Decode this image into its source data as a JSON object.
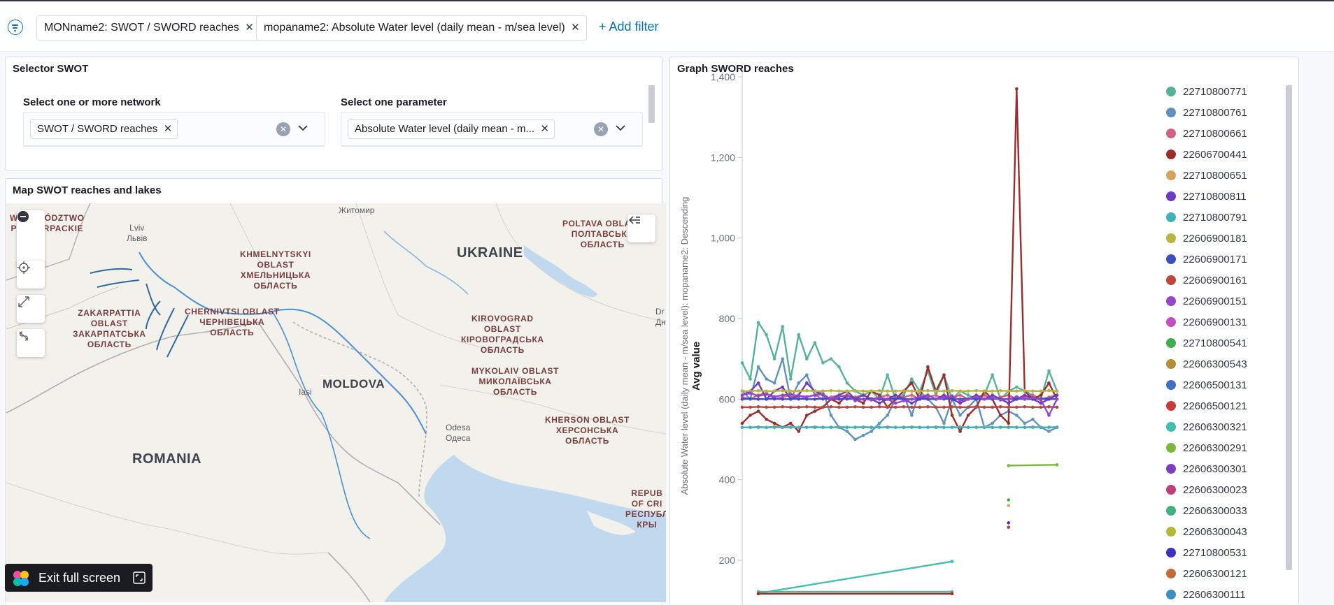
{
  "filters": [
    {
      "label": "MONname2: SWOT / SWORD reaches"
    },
    {
      "label": "mopaname2: Absolute Water level (daily mean - m/sea level)"
    }
  ],
  "add_filter_label": "+ Add filter",
  "selector": {
    "title": "Selector SWOT",
    "network_label": "Select one or more network",
    "network_value": "SWOT / SWORD reaches",
    "parameter_label": "Select one parameter",
    "parameter_value": "Absolute Water level (daily mean - m..."
  },
  "map_panel": {
    "title": "Map SWOT reaches and lakes",
    "countries": [
      "UKRAINE",
      "MOLDOVA",
      "ROMANIA"
    ],
    "regions": [
      {
        "text": "WOJEWÓDZTWO\nPODKARPACKIE"
      },
      {
        "text": "KHMELNYTSKYI\nOBLAST\nХМЕЛЬНИЦЬКА\nОБЛАСТЬ"
      },
      {
        "text": "POLTAVA OBLAST\nПОЛТАВСЬКА\nОБЛАСТЬ"
      },
      {
        "text": "ZAKARPATTIA\nOBLAST\nЗАКАРПАТСЬКА\nОБЛАСТЬ"
      },
      {
        "text": "CHERNIVTSI OBLAST\nЧЕРНІВЕЦЬКА\nОБЛАСТЬ"
      },
      {
        "text": "KIROVOGRAD\nOBLAST\nКІРОВОГРАДСЬКА\nОБЛАСТЬ"
      },
      {
        "text": "MYKOLAIV OBLAST\nМИКОЛАЇВСЬКА\nОБЛАСТЬ"
      },
      {
        "text": "KHERSON OBLAST\nХЕРСОНСЬКА\nОБЛАСТЬ"
      },
      {
        "text": "REPUB\nOF CRI\nРЕСПУБЛ\nКРЫ"
      }
    ],
    "cities": [
      {
        "text": "Lviv\nЛьвів"
      },
      {
        "text": "Житомир"
      },
      {
        "text": "Iași"
      },
      {
        "text": "Odesa\nОдеса"
      },
      {
        "text": "Dr\nДн"
      }
    ]
  },
  "exit_fullscreen_label": "Exit full screen",
  "graph_panel": {
    "title": "Graph SWORD reaches"
  },
  "chart_data": {
    "type": "line",
    "ylabel": "Absolute Water level (daily mean - m/sea level): mopaname2: Descending",
    "ylabel2": "Avg value",
    "ylim": [
      100,
      1420
    ],
    "yticks": [
      200,
      400,
      600,
      800,
      1000,
      1200,
      1400
    ],
    "ytick_labels": [
      "200",
      "400",
      "600",
      "800",
      "1,000",
      "1,200",
      "1,400"
    ],
    "legend_position": "right",
    "series": [
      {
        "name": "22710800771",
        "color": "#54b399",
        "values": [
          690,
          650,
          790,
          760,
          700,
          780,
          650,
          760,
          700,
          740,
          690,
          700,
          680,
          640,
          620,
          610,
          620,
          600,
          660,
          600,
          610,
          650,
          620,
          670,
          610,
          660,
          600,
          620,
          610,
          600,
          610,
          660,
          600,
          620,
          630,
          620,
          610,
          600,
          670,
          620
        ]
      },
      {
        "name": "22710800761",
        "color": "#6092c0",
        "values": [
          620,
          600,
          680,
          650,
          640,
          700,
          600,
          640,
          660,
          610,
          620,
          560,
          530,
          520,
          500,
          510,
          520,
          540,
          560,
          600,
          610,
          560,
          620,
          600,
          580,
          540,
          600,
          560,
          580,
          600,
          530,
          540,
          560,
          570,
          560,
          540,
          550,
          530,
          520,
          530
        ]
      },
      {
        "name": "22710800661",
        "color": "#d36086",
        "values": [
          605,
          600,
          610,
          615,
          600,
          605,
          610,
          600,
          605,
          610,
          600,
          605,
          610,
          600,
          605,
          610,
          600,
          605,
          610,
          600,
          605,
          610,
          600,
          605,
          610,
          600,
          605,
          610,
          600,
          605,
          610,
          600,
          605,
          610,
          600,
          605,
          610,
          600,
          605,
          610
        ]
      },
      {
        "name": "22606700441",
        "color": "#9c2d2d",
        "values": [
          540,
          560,
          570,
          550,
          540,
          530,
          540,
          520,
          560,
          570,
          580,
          600,
          590,
          610,
          600,
          590,
          620,
          610,
          580,
          600,
          620,
          640,
          600,
          680,
          620,
          660,
          560,
          520,
          560,
          580,
          620,
          600,
          560,
          540,
          1370,
          620,
          600,
          610,
          640,
          600
        ]
      },
      {
        "name": "22710800651",
        "color": "#d6a35c",
        "values": [
          530,
          530,
          531,
          530,
          532,
          530,
          531,
          530,
          530,
          531,
          530,
          530,
          531,
          530,
          530,
          531,
          530,
          530,
          531,
          530,
          530,
          531,
          530,
          530,
          531,
          530,
          530,
          531,
          530,
          530,
          531,
          530,
          530,
          531,
          530,
          530,
          531,
          530,
          530,
          531
        ]
      },
      {
        "name": "22710800811",
        "color": "#6e3ac4",
        "values": [
          610,
          620,
          640,
          600,
          620,
          630,
          600,
          610,
          640,
          620,
          610,
          600,
          610,
          620,
          600,
          610,
          600,
          590,
          600,
          610,
          600,
          590,
          600,
          610,
          600,
          610,
          600,
          590,
          600,
          610,
          600,
          610,
          600,
          590,
          600,
          610,
          600,
          590,
          600,
          610
        ]
      },
      {
        "name": "22710800791",
        "color": "#3fb3ba",
        "values": [
          530,
          530,
          530,
          530,
          530,
          530,
          530,
          530,
          530,
          530,
          530,
          530,
          530,
          530,
          530,
          530,
          530,
          530,
          530,
          530,
          530,
          530,
          530,
          530,
          530,
          530,
          530,
          530,
          530,
          530,
          530,
          530,
          530,
          530,
          530,
          530,
          530,
          530,
          530,
          530
        ]
      },
      {
        "name": "22606900181",
        "color": "#b9b43c",
        "values": [
          620,
          620,
          621,
          620,
          620,
          621,
          620,
          620,
          621,
          620,
          620,
          621,
          620,
          620,
          621,
          620,
          620,
          621,
          620,
          620,
          621,
          620,
          620,
          621,
          620,
          620,
          621,
          620,
          620,
          621,
          620,
          620,
          621,
          620,
          620,
          621,
          620,
          620,
          621,
          620
        ]
      },
      {
        "name": "22606900171",
        "color": "#3b4fbf",
        "values": [
          600,
          601,
          600,
          600,
          601,
          600,
          600,
          601,
          600,
          600,
          601,
          600,
          600,
          601,
          600,
          600,
          601,
          600,
          600,
          601,
          600,
          600,
          601,
          600,
          600,
          601,
          600,
          600,
          601,
          600,
          600,
          601,
          600,
          600,
          601,
          600,
          600,
          601,
          600,
          600
        ]
      },
      {
        "name": "22606900161",
        "color": "#c0463d",
        "values": [
          580,
          580,
          581,
          580,
          580,
          581,
          580,
          580,
          581,
          580,
          580,
          581,
          580,
          580,
          581,
          580,
          580,
          581,
          580,
          580,
          581,
          580,
          580,
          581,
          580,
          580,
          581,
          580,
          580,
          581,
          580,
          580,
          581,
          580,
          580,
          581,
          580,
          580,
          581,
          580
        ]
      },
      {
        "name": "22606900151",
        "color": "#9447c8",
        "values": [
          610,
          615,
          608,
          612,
          606,
          610,
          612,
          608,
          606,
          610,
          612,
          600,
          606,
          610,
          596,
          600,
          598,
          604,
          600,
          590,
          596,
          600,
          606,
          610,
          600,
          604,
          608,
          596,
          600,
          606,
          600,
          604,
          598,
          600,
          606,
          600,
          604,
          598,
          560,
          600
        ]
      },
      {
        "name": "22606900131",
        "color": "#c44fc0",
        "values": null
      },
      {
        "name": "22710800541",
        "color": "#3fae4d",
        "values": null
      },
      {
        "name": "22606300543",
        "color": "#b08f35",
        "values": null
      },
      {
        "name": "22606500131",
        "color": "#3d6fc8",
        "values": null
      },
      {
        "name": "22606500121",
        "color": "#c93b3b",
        "values": null
      },
      {
        "name": "22606300321",
        "color": "#3fbfb0",
        "values": null
      },
      {
        "name": "22606300291",
        "color": "#78b83a",
        "values": null
      },
      {
        "name": "22606300301",
        "color": "#7d3ec4",
        "values": null
      },
      {
        "name": "22606300023",
        "color": "#c23d77",
        "values": null
      },
      {
        "name": "22606300033",
        "color": "#3fb080",
        "values": null
      },
      {
        "name": "22606300043",
        "color": "#b5b836",
        "values": null
      },
      {
        "name": "22710800531",
        "color": "#3a32c0",
        "values": null
      },
      {
        "name": "22606300121",
        "color": "#c46a3a",
        "values": null
      },
      {
        "name": "22606300111",
        "color": "#3a8fc4",
        "values": null
      }
    ],
    "extra_points": [
      {
        "x": 33,
        "y": 435,
        "color": "#78b83a"
      },
      {
        "x": 39,
        "y": 437,
        "color": "#78b83a"
      },
      {
        "x": 33,
        "y": 350,
        "color": "#3fae4d"
      },
      {
        "x": 33,
        "y": 336,
        "color": "#d6a35c"
      },
      {
        "x": 33,
        "y": 293,
        "color": "#3a32c0"
      },
      {
        "x": 33,
        "y": 282,
        "color": "#c93b3b"
      }
    ],
    "lower_segments": [
      {
        "color": "#3fbfb0",
        "points": [
          [
            2,
            118
          ],
          [
            26,
            197
          ]
        ]
      },
      {
        "color": "#54b399",
        "points": [
          [
            2,
            122
          ],
          [
            26,
            122
          ]
        ]
      },
      {
        "color": "#9c2d2d",
        "points": [
          [
            2,
            117
          ],
          [
            26,
            117
          ]
        ]
      }
    ]
  }
}
